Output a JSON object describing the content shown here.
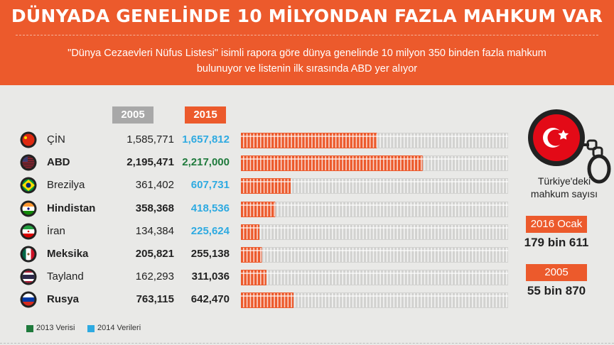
{
  "header": {
    "title": "DÜNYADA GENELİNDE 10 MİLYONDAN FAZLA MAHKUM VAR",
    "subtitle": "\"Dünya Cezaevleri Nüfus Listesi\" isimli rapora göre dünya genelinde 10 milyon 350 binden fazla mahkum bulunuyor ve listenin ilk sırasında ABD yer alıyor"
  },
  "columns": {
    "y2005": "2005",
    "y2015": "2015"
  },
  "chart_data": {
    "type": "bar",
    "categories": [
      "ÇİN",
      "ABD",
      "Brezilya",
      "Hindistan",
      "İran",
      "Meksika",
      "Tayland",
      "Rusya"
    ],
    "series": [
      {
        "name": "2005",
        "values": [
          1585771,
          2195471,
          361402,
          358368,
          134384,
          205821,
          162293,
          763115
        ]
      },
      {
        "name": "2015",
        "values": [
          1657812,
          2217000,
          607731,
          418536,
          225624,
          255138,
          311036,
          642470
        ]
      }
    ],
    "bar_series": "2015",
    "bar_max": 2217000,
    "bar_scale_note": "progress bars show 2015 values"
  },
  "rows": [
    {
      "country": "ÇİN",
      "v2005": "1,585,771",
      "v2015": "1,657,812",
      "v2015_color": "blue",
      "bold": false,
      "flag": "china-flag-icon"
    },
    {
      "country": "ABD",
      "v2005": "2,195,471",
      "v2015": "2,217,000",
      "v2015_color": "green",
      "bold": true,
      "flag": "usa-flag-icon"
    },
    {
      "country": "Brezilya",
      "v2005": "361,402",
      "v2015": "607,731",
      "v2015_color": "blue",
      "bold": false,
      "flag": "brazil-flag-icon"
    },
    {
      "country": "Hindistan",
      "v2005": "358,368",
      "v2015": "418,536",
      "v2015_color": "blue",
      "bold": true,
      "flag": "india-flag-icon"
    },
    {
      "country": "İran",
      "v2005": "134,384",
      "v2015": "225,624",
      "v2015_color": "blue",
      "bold": false,
      "flag": "iran-flag-icon"
    },
    {
      "country": "Meksika",
      "v2005": "205,821",
      "v2015": "255,138",
      "v2015_color": "dark",
      "bold": true,
      "flag": "mexico-flag-icon"
    },
    {
      "country": "Tayland",
      "v2005": "162,293",
      "v2015": "311,036",
      "v2015_color": "dark",
      "bold": false,
      "flag": "thailand-flag-icon"
    },
    {
      "country": "Rusya",
      "v2005": "763,115",
      "v2015": "642,470",
      "v2015_color": "dark",
      "bold": true,
      "flag": "russia-flag-icon"
    }
  ],
  "turkey": {
    "label": "Türkiye'deki mahkum sayısı",
    "date1": "2016 Ocak",
    "value1": "179 bin 611",
    "date2": "2005",
    "value2": "55 bin 870"
  },
  "legend": [
    {
      "label": "2013 Verisi",
      "color": "#1f7a3c"
    },
    {
      "label": "2014 Verileri",
      "color": "#2eaae1"
    }
  ],
  "colors": {
    "accent": "#ec5a2c",
    "grey": "#a8a8a8",
    "green": "#1f7a3c",
    "blue": "#2eaae1",
    "background": "#e9e9e7"
  }
}
